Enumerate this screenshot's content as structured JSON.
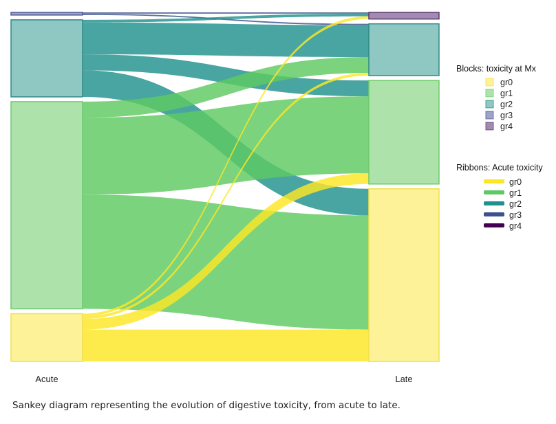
{
  "chart_data": {
    "type": "sankey",
    "axes": [
      "Acute",
      "Late"
    ],
    "categories": [
      "gr0",
      "gr1",
      "gr2",
      "gr3",
      "gr4"
    ],
    "block_colors": {
      "gr0": "#FDF298",
      "gr1": "#ADE3AA",
      "gr2": "#8FC7C3",
      "gr3": "#9FA3C9",
      "gr4": "#A28AB1"
    },
    "block_borders": {
      "gr0": "#F0E04A",
      "gr1": "#6CCB6A",
      "gr2": "#2E8C86",
      "gr3": "#4E5C96",
      "gr4": "#5A3A6E"
    },
    "ribbon_colors": {
      "gr0": "#FDE725",
      "gr1": "#5EC962",
      "gr2": "#21918C",
      "gr3": "#3B528B",
      "gr4": "#440154"
    },
    "flows": [
      {
        "from": "gr3",
        "to": "gr2",
        "value": 0.5
      },
      {
        "from": "gr3",
        "to": "gr4",
        "value": 0.5
      },
      {
        "from": "gr2",
        "to": "gr4",
        "value": 1
      },
      {
        "from": "gr2",
        "to": "gr2",
        "value": 12
      },
      {
        "from": "gr2",
        "to": "gr1",
        "value": 6
      },
      {
        "from": "gr2",
        "to": "gr0",
        "value": 10
      },
      {
        "from": "gr1",
        "to": "gr2",
        "value": 6
      },
      {
        "from": "gr1",
        "to": "gr1",
        "value": 29
      },
      {
        "from": "gr1",
        "to": "gr0",
        "value": 43
      },
      {
        "from": "gr0",
        "to": "gr4",
        "value": 1
      },
      {
        "from": "gr0",
        "to": "gr2",
        "value": 1
      },
      {
        "from": "gr0",
        "to": "gr1",
        "value": 4
      },
      {
        "from": "gr0",
        "to": "gr0",
        "value": 12
      }
    ],
    "legend_blocks_title": "Blocks: toxicity at Mx",
    "legend_ribbons_title": "Ribbons: Acute toxicity",
    "grid": false,
    "legend_position": "right"
  },
  "caption": "Sankey diagram representing the evolution of digestive toxicity, from acute to late."
}
